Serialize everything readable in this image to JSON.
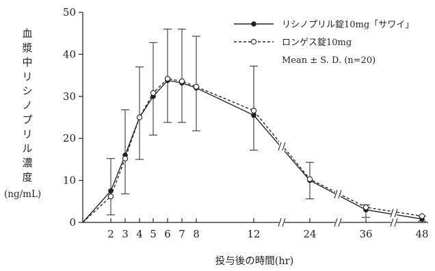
{
  "chart_data": {
    "type": "line",
    "title": "",
    "xlabel": "投与後の時間(hr)",
    "ylabel": "血漿中リシノプリル濃度",
    "yunit": "(ng/mL)",
    "ylim": [
      0,
      50
    ],
    "yticks": [
      0,
      10,
      20,
      30,
      40,
      50
    ],
    "xtick_labels": [
      "2",
      "3",
      "4",
      "5",
      "6",
      "7",
      "8",
      "12",
      "24",
      "36",
      "48"
    ],
    "axis_breaks": [
      "12–24",
      "24–36",
      "36–48"
    ],
    "grid": false,
    "legend_position": "top-right",
    "legend_note": "Mean ± S. D. (n=20)",
    "series": [
      {
        "name": "リシノプリル錠10mg「サワイ」",
        "style": "solid",
        "marker": "filled-circle",
        "x": [
          0,
          2,
          3,
          4,
          5,
          6,
          7,
          8,
          12,
          24,
          36,
          48
        ],
        "y": [
          0,
          7.5,
          16.0,
          25.0,
          30.0,
          33.8,
          33.2,
          32.0,
          25.5,
          10.0,
          3.0,
          0.8
        ],
        "error_upper": [
          null,
          15.2,
          26.8,
          37.0,
          42.8,
          46.0,
          46.0,
          44.3,
          37.2,
          14.3,
          4.2,
          1.5
        ],
        "error_lower": [
          null,
          1.8,
          6.8,
          15.0,
          20.8,
          23.8,
          23.8,
          21.8,
          17.2,
          5.6,
          1.2,
          0.3
        ]
      },
      {
        "name": "ロンゲス錠10mg",
        "style": "dashed",
        "marker": "open-circle",
        "x": [
          0,
          2,
          3,
          4,
          5,
          6,
          7,
          8,
          12,
          24,
          36,
          48
        ],
        "y": [
          0,
          6.2,
          15.2,
          25.0,
          30.8,
          34.2,
          33.6,
          32.3,
          26.6,
          10.3,
          3.6,
          1.5
        ],
        "error_upper": [],
        "error_lower": []
      }
    ]
  }
}
